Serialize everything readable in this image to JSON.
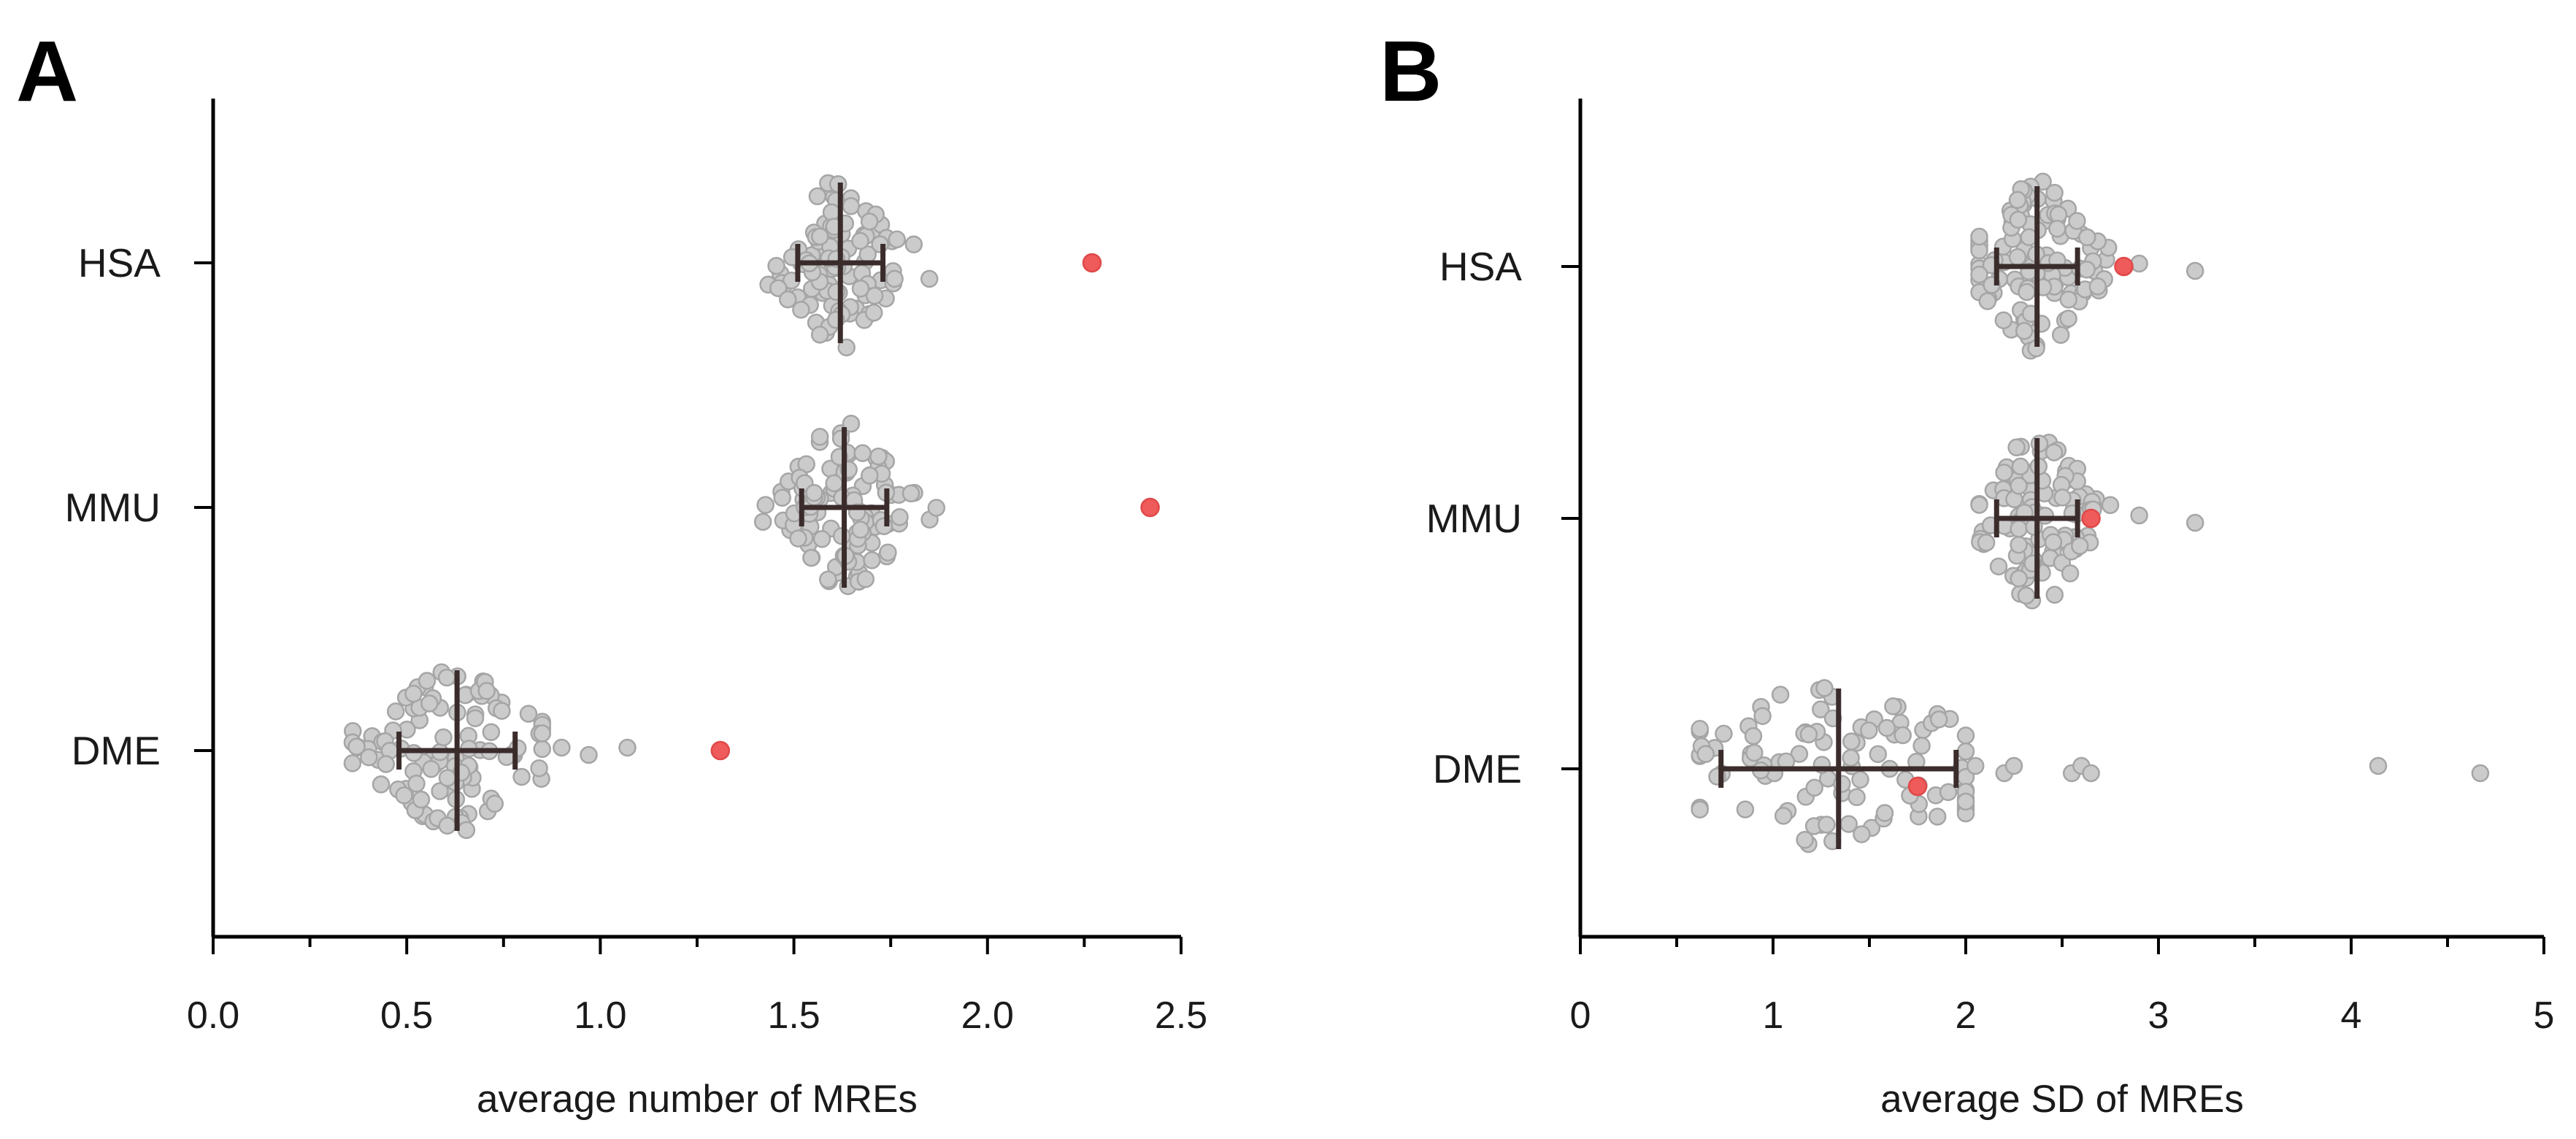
{
  "chart_data": [
    {
      "panel": "A",
      "type": "scatter",
      "subtype": "beeswarm",
      "xlabel": "average number of MREs",
      "xlim": [
        0.0,
        2.5
      ],
      "xticks": [
        "0.0",
        "0.5",
        "1.0",
        "1.5",
        "2.0",
        "2.5"
      ],
      "xtick_values": [
        0.0,
        0.5,
        1.0,
        1.5,
        2.0,
        2.5
      ],
      "minor_step": 0.25,
      "categories": [
        "HSA",
        "MMU",
        "DME"
      ],
      "groups": [
        {
          "name": "HSA",
          "mean": 1.62,
          "sd": 0.11,
          "range": [
            1.42,
            1.85
          ],
          "n": 110,
          "highlight": 2.27
        },
        {
          "name": "MMU",
          "mean": 1.63,
          "sd": 0.11,
          "range": [
            1.42,
            1.87
          ],
          "n": 110,
          "highlight": 2.42
        },
        {
          "name": "DME",
          "mean": 0.63,
          "sd": 0.15,
          "range": [
            0.36,
            0.85
          ],
          "n": 110,
          "highlight": 1.31,
          "outliers": [
            0.9,
            0.97,
            1.07
          ]
        }
      ]
    },
    {
      "panel": "B",
      "type": "scatter",
      "subtype": "beeswarm",
      "xlabel": "average SD of MREs",
      "xlim": [
        0,
        5
      ],
      "xticks": [
        "0",
        "1",
        "2",
        "3",
        "4",
        "5"
      ],
      "xtick_values": [
        0,
        1,
        2,
        3,
        4,
        5
      ],
      "minor_step": 0.5,
      "categories": [
        "HSA",
        "MMU",
        "DME"
      ],
      "groups": [
        {
          "name": "HSA",
          "mean": 2.37,
          "sd": 0.21,
          "range": [
            2.07,
            2.75
          ],
          "n": 110,
          "highlight": 2.82,
          "outliers": [
            2.9,
            3.19
          ]
        },
        {
          "name": "MMU",
          "mean": 2.37,
          "sd": 0.21,
          "range": [
            2.07,
            2.75
          ],
          "n": 110,
          "highlight": 2.65,
          "outliers": [
            2.9,
            3.19
          ]
        },
        {
          "name": "DME",
          "mean": 1.34,
          "sd": 0.61,
          "range": [
            0.62,
            2.0
          ],
          "n": 100,
          "highlight": 1.75,
          "outliers": [
            2.05,
            2.2,
            2.25,
            2.55,
            2.6,
            2.65,
            4.14,
            4.67
          ]
        }
      ]
    }
  ]
}
